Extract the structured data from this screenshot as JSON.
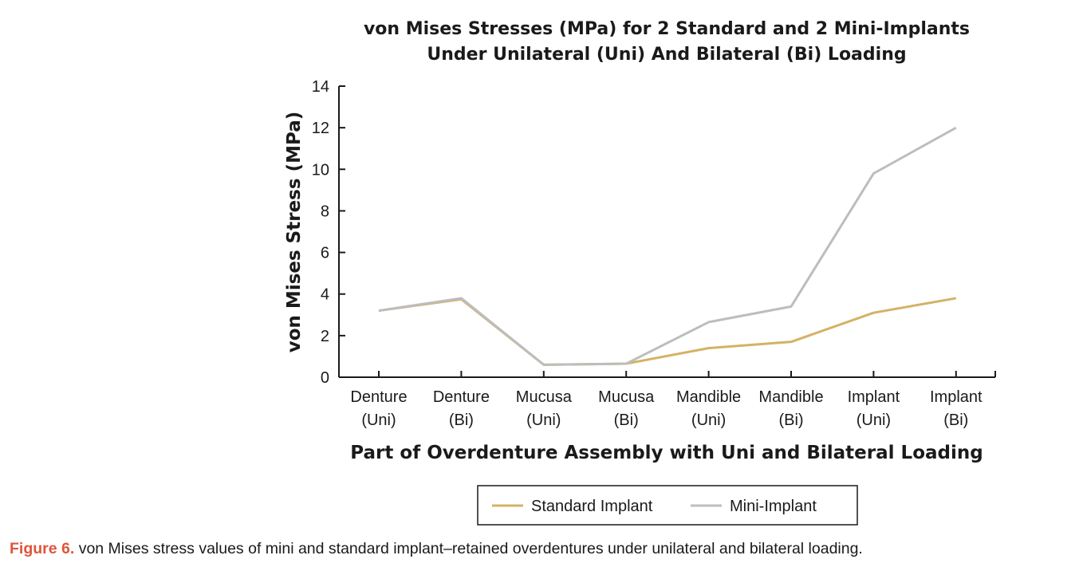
{
  "chart_data": {
    "type": "line",
    "title_lines": [
      "von Mises Stresses (MPa) for 2 Standard and 2 Mini-Implants",
      "Under Unilateral (Uni) And Bilateral (Bi) Loading"
    ],
    "xlabel": "Part of Overdenture Assembly with Uni and Bilateral Loading",
    "ylabel": "von Mises Stress (MPa)",
    "ylim": [
      0,
      14
    ],
    "yticks": [
      0,
      2,
      4,
      6,
      8,
      10,
      12,
      14
    ],
    "categories": [
      [
        "Denture",
        "(Uni)"
      ],
      [
        "Denture",
        "(Bi)"
      ],
      [
        "Mucusa",
        "(Uni)"
      ],
      [
        "Mucusa",
        "(Bi)"
      ],
      [
        "Mandible",
        "(Uni)"
      ],
      [
        "Mandible",
        "(Bi)"
      ],
      [
        "Implant",
        "(Uni)"
      ],
      [
        "Implant",
        "(Bi)"
      ]
    ],
    "series": [
      {
        "name": "Standard Implant",
        "color": "#d4b265",
        "values": [
          3.2,
          3.75,
          0.6,
          0.65,
          1.4,
          1.7,
          3.1,
          3.8
        ]
      },
      {
        "name": "Mini-Implant",
        "color": "#bdbdbd",
        "values": [
          3.2,
          3.8,
          0.6,
          0.65,
          2.65,
          3.4,
          9.8,
          12.0
        ]
      }
    ],
    "legend": "bottom-center"
  },
  "caption": {
    "label": "Figure 6.",
    "text": " von Mises stress values of mini and standard implant–retained overdentures under unilateral and bilateral loading."
  }
}
